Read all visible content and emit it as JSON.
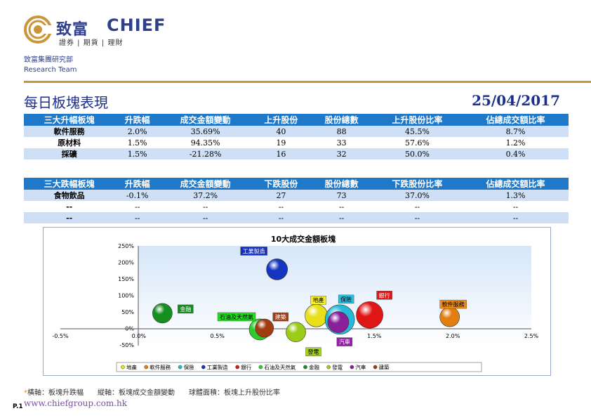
{
  "header": {
    "brand_cn": "致富",
    "brand_en": "CHIEF",
    "brand_sub": "證券 | 期貨 | 理財",
    "dept_cn": "致富集團研究部",
    "dept_en": "Research Team",
    "accent_color": "#c9963a",
    "brand_color": "#2e3f8f"
  },
  "title": "每日板塊表現",
  "date": "25/04/2017",
  "gainers": {
    "headers": [
      "三大升幅板塊",
      "升跌幅",
      "成交金額變動",
      "上升股份",
      "股份總數",
      "上升股份比率",
      "佔總成交額比率"
    ],
    "rows": [
      [
        "軟件服務",
        "2.0%",
        "35.69%",
        "40",
        "88",
        "45.5%",
        "8.7%"
      ],
      [
        "原材料",
        "1.5%",
        "94.35%",
        "19",
        "33",
        "57.6%",
        "1.2%"
      ],
      [
        "採礦",
        "1.5%",
        "-21.28%",
        "16",
        "32",
        "50.0%",
        "0.4%"
      ]
    ]
  },
  "losers": {
    "headers": [
      "三大跌幅板塊",
      "升跌幅",
      "成交金額變動",
      "下跌股份",
      "股份總數",
      "下跌股份比率",
      "佔總成交額比率"
    ],
    "rows": [
      [
        "食物飲品",
        "-0.1%",
        "37.2%",
        "27",
        "73",
        "37.0%",
        "1.3%"
      ],
      [
        "--",
        "--",
        "--",
        "--",
        "--",
        "--",
        "--"
      ],
      [
        "--",
        "--",
        "--",
        "--",
        "--",
        "--",
        "--"
      ]
    ]
  },
  "chart_data": {
    "type": "scatter",
    "title": "10大成交金額板塊",
    "xlabel": "板塊升跌幅",
    "ylabel": "板塊成交金額變動",
    "size_label": "板塊上升股份比率",
    "xlim": [
      -0.5,
      2.5
    ],
    "ylim": [
      -0.5,
      2.5
    ],
    "x_ticks": [
      "-0.5%",
      "0.0%",
      "0.5%",
      "1.0%",
      "1.5%",
      "2.0%",
      "2.5%"
    ],
    "y_ticks": [
      "250%",
      "200%",
      "150%",
      "100%",
      "50%",
      "0%",
      "-50%"
    ],
    "legend_position": "bottom",
    "series": [
      {
        "name": "地產",
        "x": 1.13,
        "y": 0.4,
        "r": 16,
        "color": "#e8e01a",
        "label_bg": "#f5ef20",
        "label_color": "#000000"
      },
      {
        "name": "軟件服務",
        "x": 1.98,
        "y": 0.36,
        "r": 14,
        "color": "#e37f10",
        "label_bg": "#f08a10",
        "label_color": "#000000"
      },
      {
        "name": "保險",
        "x": 1.28,
        "y": 0.28,
        "r": 21,
        "color": "#25b9d9",
        "label_bg": "#27c0e0",
        "label_color": "#000000"
      },
      {
        "name": "工業製造",
        "x": 0.88,
        "y": 1.8,
        "r": 15,
        "color": "#1535c0",
        "label_bg": "#1530c0",
        "label_color": "#ffffff"
      },
      {
        "name": "銀行",
        "x": 1.47,
        "y": 0.42,
        "r": 19,
        "color": "#e01515",
        "label_bg": "#e01515",
        "label_color": "#ffffff"
      },
      {
        "name": "石油及天然氣",
        "x": 0.77,
        "y": -0.02,
        "r": 15,
        "color": "#2ccc2c",
        "label_bg": "#1ee01e",
        "label_color": "#000000"
      },
      {
        "name": "金融",
        "x": 0.15,
        "y": 0.47,
        "r": 14,
        "color": "#159020",
        "label_bg": "#168a22",
        "label_color": "#ffffff"
      },
      {
        "name": "發電",
        "x": 1.0,
        "y": -0.1,
        "r": 14,
        "color": "#9ccc1a",
        "label_bg": "#a4d21e",
        "label_color": "#000000"
      },
      {
        "name": "汽車",
        "x": 1.27,
        "y": 0.2,
        "r": 15,
        "color": "#8a1f9a",
        "label_bg": "#951fa8",
        "label_color": "#ffffff"
      },
      {
        "name": "建築",
        "x": 0.8,
        "y": 0.02,
        "r": 13,
        "color": "#a23d10",
        "label_bg": "#a23d10",
        "label_color": "#ffffff"
      }
    ]
  },
  "footnote": {
    "star": "*",
    "text": "橫軸：板塊升跌幅　　縱軸：板塊成交金額變動　　球體面積：板塊上升股份比率"
  },
  "footer": {
    "page": "P.1",
    "url": "www.chiefgroup.com.hk"
  }
}
